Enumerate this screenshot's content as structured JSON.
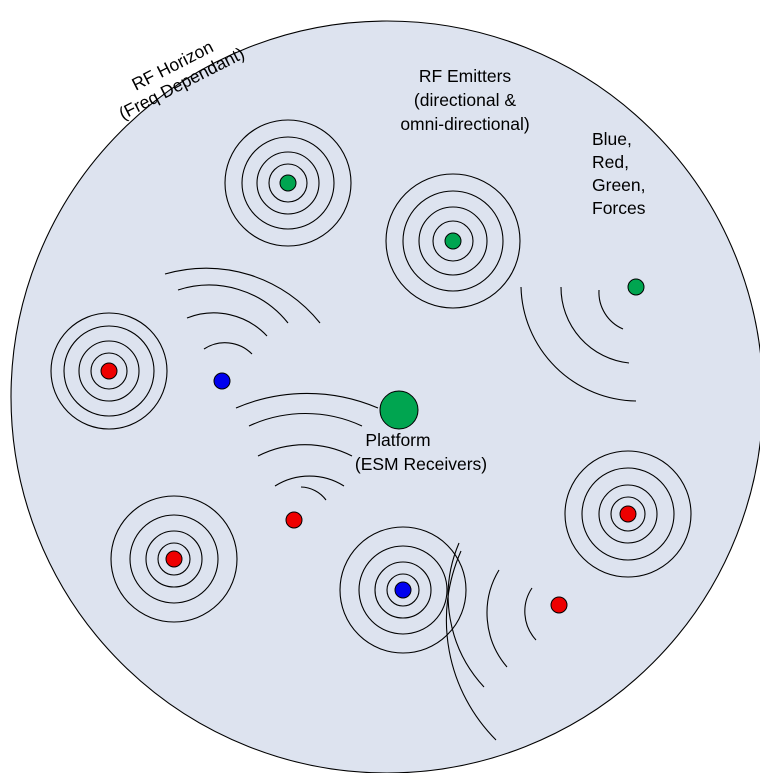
{
  "labels": {
    "horizon_line1": "RF Horizon",
    "horizon_line2": "(Freq Dependant)",
    "emitters_line1": "RF Emitters",
    "emitters_line2": "(directional &",
    "emitters_line3": "omni-directional)",
    "forces_line1": "Blue,",
    "forces_line2": "Red,",
    "forces_line3": "Green,",
    "forces_line4": "Forces",
    "platform_line1": "Platform",
    "platform_line2": "(ESM Receivers)"
  },
  "colors": {
    "horizon_fill": "#dde3ef",
    "blue": "#0000ee",
    "red": "#ee0000",
    "green": "#00a550",
    "platform": "#00a550",
    "line": "#000000"
  },
  "emitters": [
    {
      "id": "green-omni-top",
      "force": "green",
      "type": "omni-directional",
      "rings": 4
    },
    {
      "id": "green-omni-right",
      "force": "green",
      "type": "omni-directional",
      "rings": 4
    },
    {
      "id": "green-directional-right",
      "force": "green",
      "type": "directional",
      "arcs": 3
    },
    {
      "id": "red-omni-left",
      "force": "red",
      "type": "omni-directional",
      "rings": 4
    },
    {
      "id": "blue-directional-left",
      "force": "blue",
      "type": "directional",
      "arcs": 4
    },
    {
      "id": "red-directional-center",
      "force": "red",
      "type": "directional",
      "arcs": 5
    },
    {
      "id": "red-omni-bottom-left",
      "force": "red",
      "type": "omni-directional",
      "rings": 4
    },
    {
      "id": "blue-omni-bottom",
      "force": "blue",
      "type": "omni-directional",
      "rings": 4
    },
    {
      "id": "red-directional-bottom",
      "force": "red",
      "type": "directional",
      "arcs": 4
    },
    {
      "id": "red-omni-right",
      "force": "red",
      "type": "omni-directional",
      "rings": 4
    }
  ]
}
